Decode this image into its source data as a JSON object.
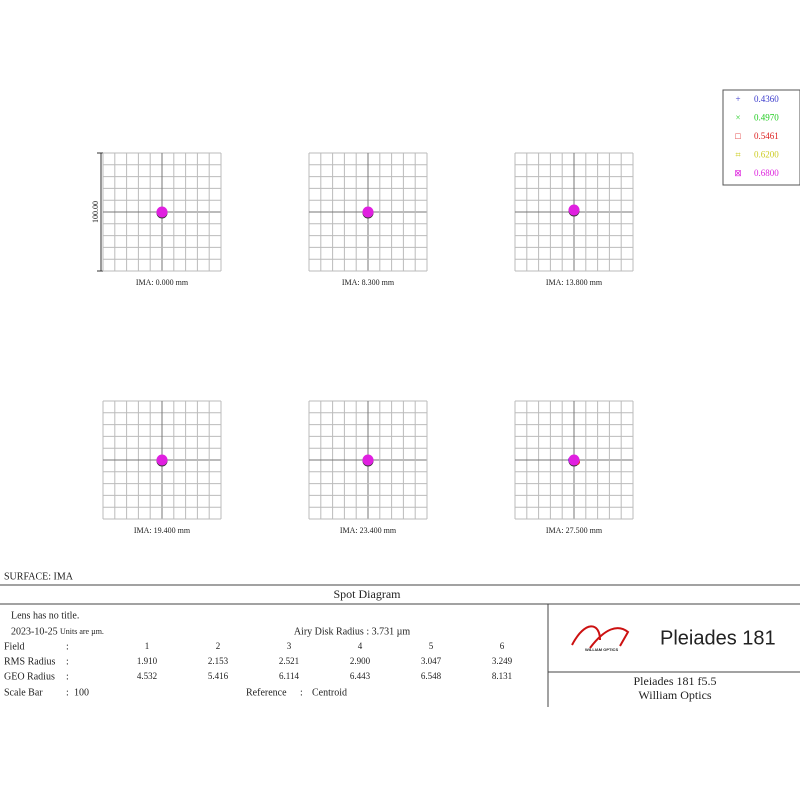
{
  "legend": [
    {
      "label": "0.4360",
      "color": "#3a3acc"
    },
    {
      "label": "0.4970",
      "color": "#22cc22"
    },
    {
      "label": "0.5461",
      "color": "#dd2222"
    },
    {
      "label": "0.6200",
      "color": "#cccc22"
    },
    {
      "label": "0.6800",
      "color": "#dd22dd"
    }
  ],
  "scale_bar_label": "100.00",
  "panels": [
    {
      "label": "IMA: 0.000 mm"
    },
    {
      "label": "IMA: 8.300 mm"
    },
    {
      "label": "IMA: 13.800 mm"
    },
    {
      "label": "IMA: 19.400 mm"
    },
    {
      "label": "IMA: 23.400 mm"
    },
    {
      "label": "IMA: 27.500 mm"
    }
  ],
  "surface": "SURFACE: IMA",
  "title": "Spot Diagram",
  "info": {
    "lens": "Lens has no title.",
    "date": "2023-10-25",
    "units": "Units are µm.",
    "airy": "Airy Disk Radius : 3.731 µm"
  },
  "table": {
    "separator": ":",
    "rows": [
      {
        "label": "Field",
        "values": [
          "1",
          "2",
          "3",
          "4",
          "5",
          "6"
        ]
      },
      {
        "label": "RMS Radius",
        "values": [
          "1.910",
          "2.153",
          "2.521",
          "2.900",
          "3.047",
          "3.249"
        ]
      },
      {
        "label": "GEO Radius",
        "values": [
          "4.532",
          "5.416",
          "6.114",
          "6.443",
          "6.548",
          "8.131"
        ]
      }
    ],
    "scale_bar": {
      "label": "Scale Bar",
      "value": "100"
    },
    "reference": {
      "label": "Reference",
      "value": "Centroid"
    }
  },
  "brand": {
    "logo_text": "WILLIAM OPTICS",
    "product": "Pleiades 181",
    "model": "Pleiades 181 f5.5",
    "maker": "William Optics"
  }
}
